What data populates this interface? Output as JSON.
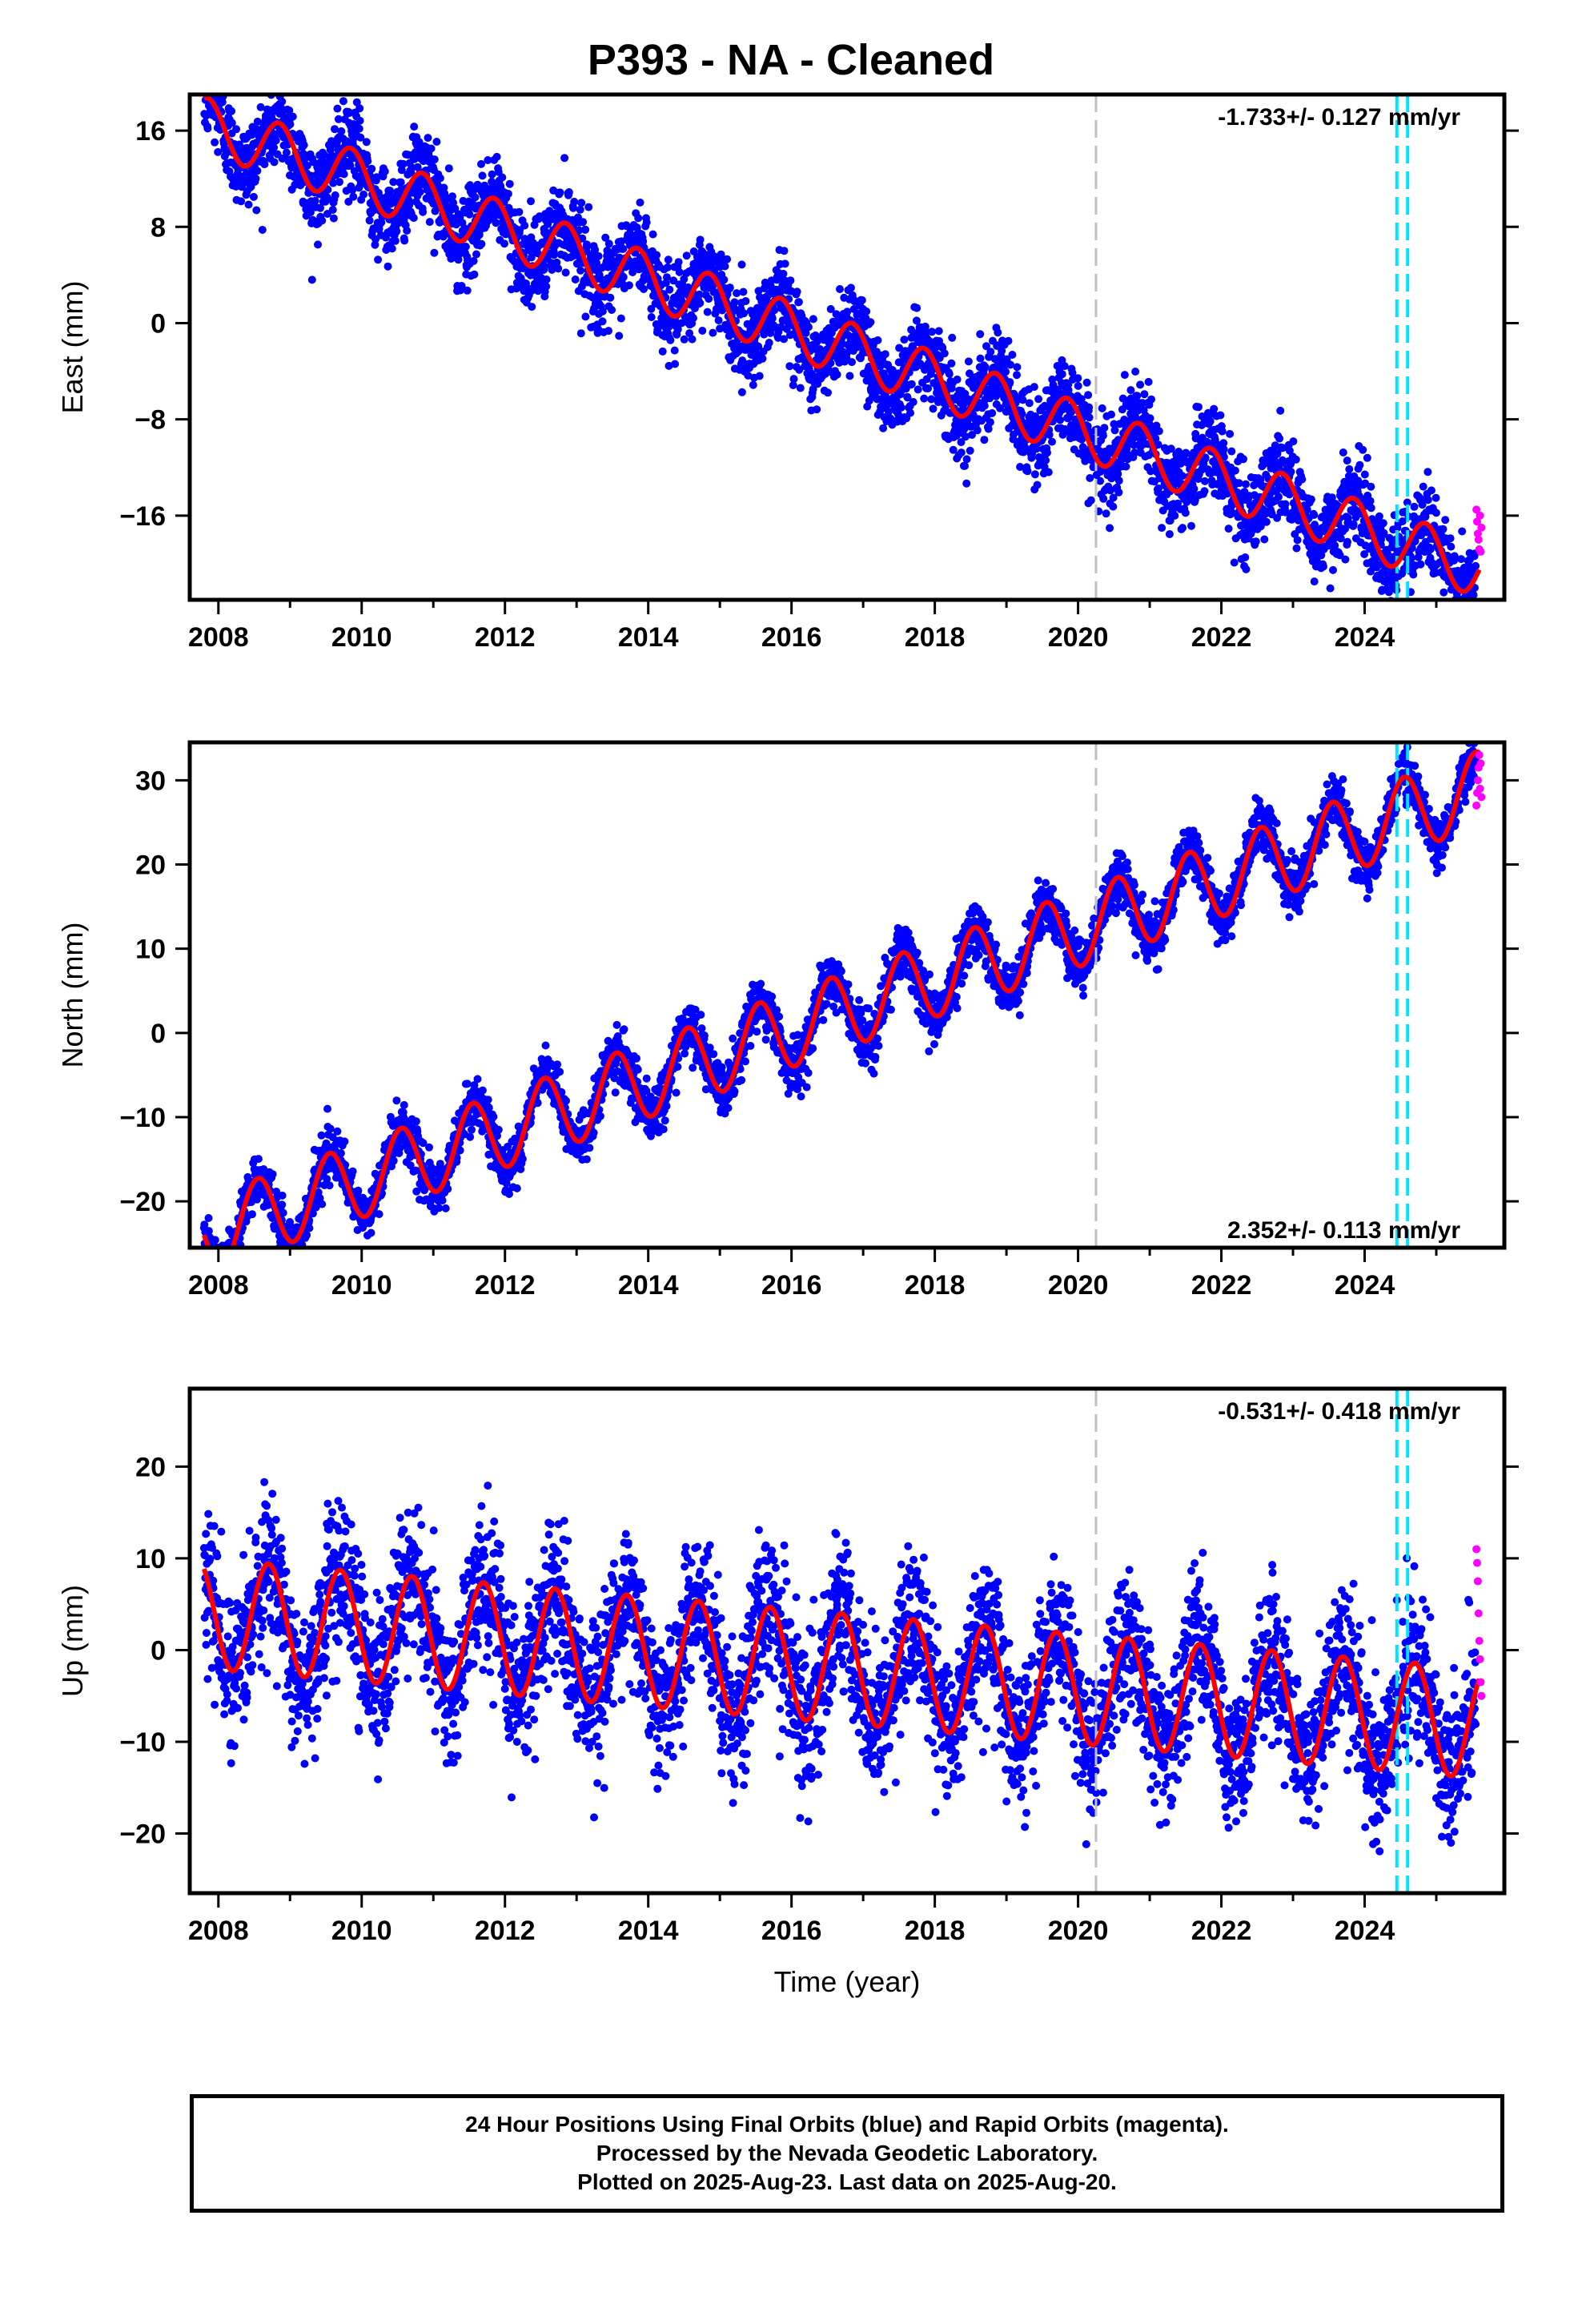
{
  "title": "P393  - NA - Cleaned",
  "footer": {
    "line1": "24 Hour Positions Using Final Orbits (blue) and Rapid Orbits (magenta).",
    "line2": "Processed by the Nevada Geodetic Laboratory.",
    "line3": "Plotted on 2025-Aug-23. Last data on 2025-Aug-20."
  },
  "colors": {
    "final_orbits": "#0000ff",
    "rapid_orbits": "#ff00ff",
    "model_fit": "#ff0000",
    "event_line": "#c0c0c0",
    "equipment_change": "#00e5ff"
  },
  "chart_data": [
    {
      "type": "scatter",
      "title": "",
      "xlabel": "",
      "ylabel": "East (mm)",
      "rate_text": "-1.733+/- 0.127 mm/yr",
      "rate_position": "top-right",
      "xlim": [
        2007.6,
        2025.95
      ],
      "ylim": [
        -23,
        19
      ],
      "xticks": [
        "2008",
        "2010",
        "2012",
        "2014",
        "2016",
        "2018",
        "2020",
        "2022",
        "2024"
      ],
      "yticks": [
        "16",
        "8",
        "0",
        "−8",
        "−16"
      ],
      "ytick_values": [
        16,
        8,
        0,
        -8,
        -16
      ],
      "event_lines": [
        {
          "x": 2020.25,
          "color": "gray"
        },
        {
          "x": 2024.45,
          "color": "cyan"
        },
        {
          "x": 2024.6,
          "color": "cyan"
        }
      ],
      "model": {
        "start": 2007.8,
        "end": 2025.6,
        "start_value": 16.5,
        "end_value": -20.5,
        "annual_amplitude": 2.3,
        "phase_year": 2008.85
      },
      "series": [
        {
          "role": "final_orbits",
          "values": "daily positions 2007.8–2025.55, trend −1.733 mm/yr, annual signal ±2.3 mm, scatter ±1.8 mm"
        },
        {
          "role": "rapid_orbits",
          "x": [
            2025.56,
            2025.57,
            2025.58,
            2025.59,
            2025.6,
            2025.61,
            2025.62,
            2025.63
          ],
          "y": [
            -15.5,
            -16.5,
            -17.5,
            -18.0,
            -18.8,
            -16.0,
            -19.0,
            -17.0
          ]
        }
      ]
    },
    {
      "type": "scatter",
      "title": "",
      "xlabel": "",
      "ylabel": "North (mm)",
      "rate_text": "2.352+/- 0.113 mm/yr",
      "rate_position": "bottom-right",
      "xlim": [
        2007.6,
        2025.95
      ],
      "ylim": [
        -25.5,
        34.5
      ],
      "xticks": [
        "2008",
        "2010",
        "2012",
        "2014",
        "2016",
        "2018",
        "2020",
        "2022",
        "2024"
      ],
      "yticks": [
        "30",
        "20",
        "10",
        "0",
        "−10",
        "−20"
      ],
      "ytick_values": [
        30,
        20,
        10,
        0,
        -10,
        -20
      ],
      "event_lines": [
        {
          "x": 2020.25,
          "color": "gray"
        },
        {
          "x": 2024.45,
          "color": "cyan"
        },
        {
          "x": 2024.6,
          "color": "cyan"
        }
      ],
      "model": {
        "start": 2007.8,
        "end": 2025.6,
        "start_value": -24.0,
        "end_value": 29.0,
        "annual_amplitude": 4.5,
        "phase_year": 2008.55
      },
      "series": [
        {
          "role": "final_orbits",
          "values": "daily positions 2007.8–2025.55, trend +2.352 mm/yr, annual signal ±4.5 mm, scatter ±1.5 mm"
        },
        {
          "role": "rapid_orbits",
          "x": [
            2025.56,
            2025.57,
            2025.58,
            2025.59,
            2025.6,
            2025.61,
            2025.62,
            2025.63
          ],
          "y": [
            27.0,
            28.5,
            30.0,
            31.5,
            33.0,
            29.0,
            32.0,
            28.0
          ]
        }
      ]
    },
    {
      "type": "scatter",
      "title": "",
      "xlabel": "Time (year)",
      "ylabel": "Up (mm)",
      "rate_text": "-0.531+/- 0.418 mm/yr",
      "rate_position": "top-right",
      "xlim": [
        2007.6,
        2025.95
      ],
      "ylim": [
        -26.5,
        28.5
      ],
      "xticks": [
        "2008",
        "2010",
        "2012",
        "2014",
        "2016",
        "2018",
        "2020",
        "2022",
        "2024"
      ],
      "yticks": [
        "20",
        "10",
        "0",
        "−10",
        "−20"
      ],
      "ytick_values": [
        20,
        10,
        0,
        -10,
        -20
      ],
      "event_lines": [
        {
          "x": 2020.25,
          "color": "gray"
        },
        {
          "x": 2024.45,
          "color": "cyan"
        },
        {
          "x": 2024.6,
          "color": "cyan"
        }
      ],
      "model": {
        "start": 2007.8,
        "end": 2025.6,
        "start_value": 4.0,
        "end_value": -8.0,
        "annual_amplitude": 6.0,
        "phase_year": 2008.7
      },
      "series": [
        {
          "role": "final_orbits",
          "values": "daily positions 2007.8–2025.55, trend −0.531 mm/yr, annual signal ±6 mm, scatter ±4 mm"
        },
        {
          "role": "rapid_orbits",
          "x": [
            2025.56,
            2025.57,
            2025.58,
            2025.59,
            2025.6,
            2025.61,
            2025.62,
            2025.63
          ],
          "y": [
            11.0,
            9.5,
            7.5,
            4.0,
            1.0,
            -1.0,
            -3.5,
            -5.0
          ]
        }
      ]
    }
  ]
}
